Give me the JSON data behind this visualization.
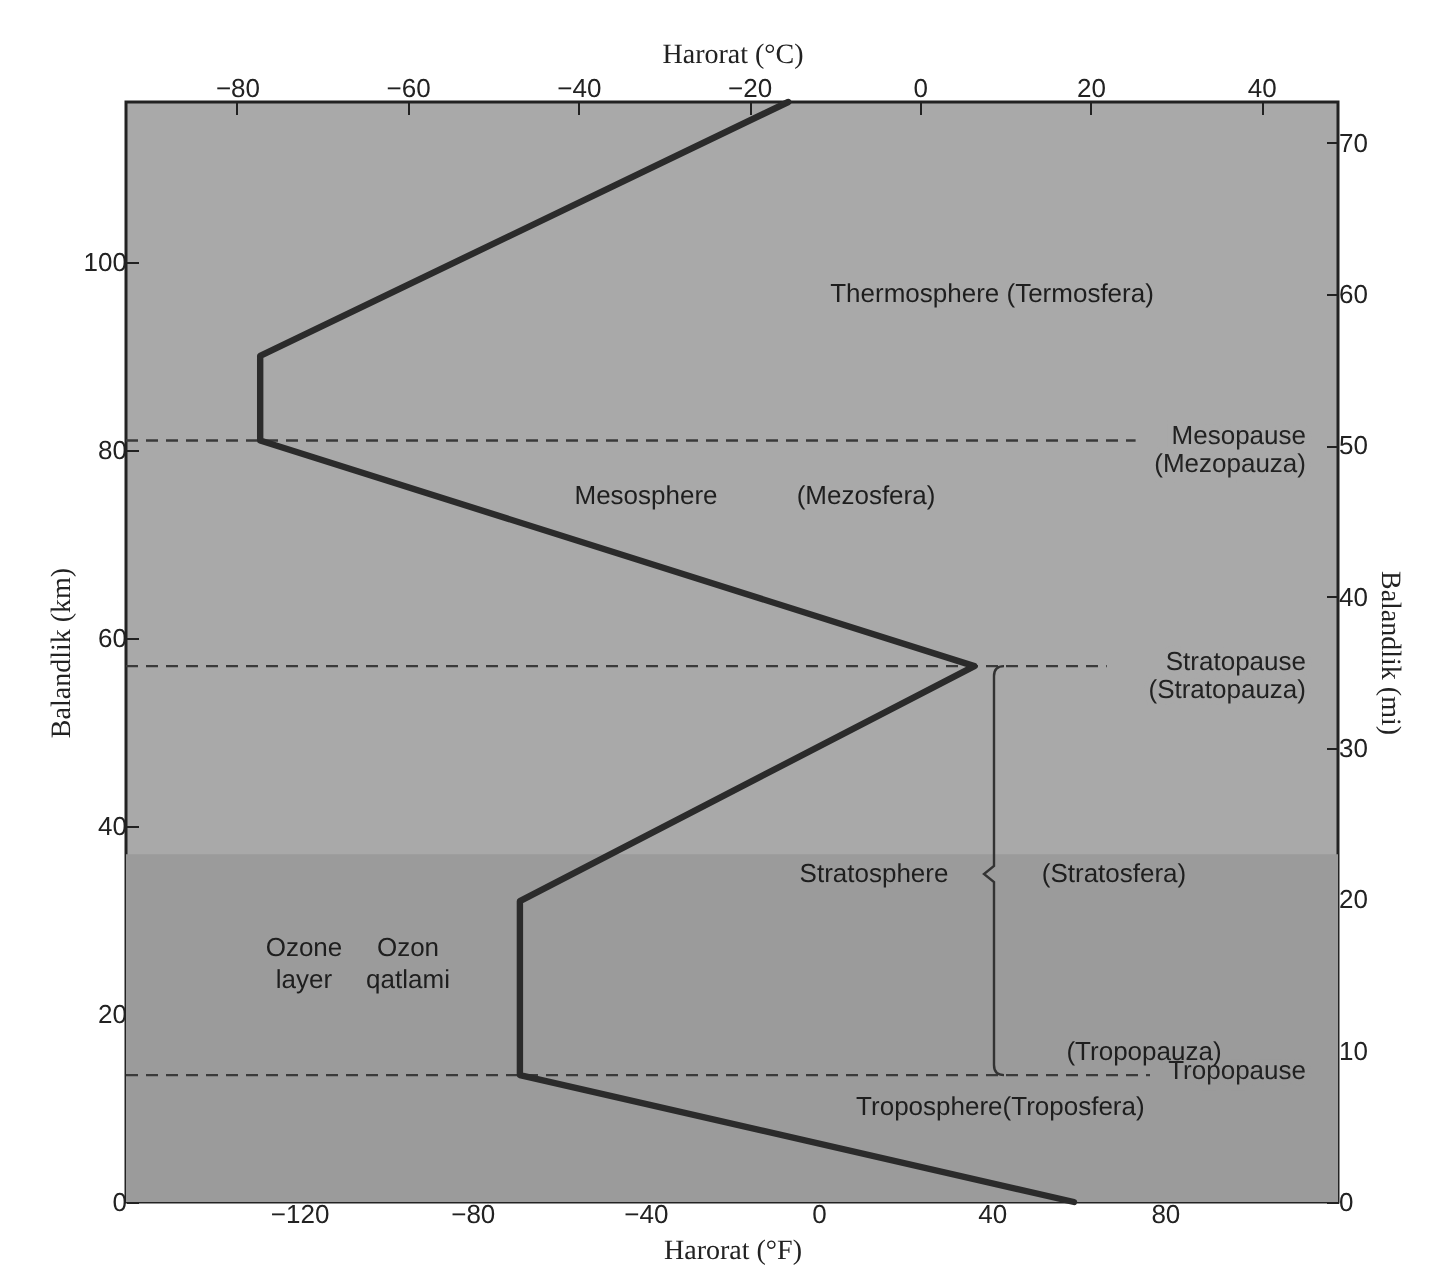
{
  "chart_data": {
    "type": "line",
    "xlabel": "Harorat (°F)",
    "ylabel": "Balandlik (km)",
    "x2label": "Harorat (°C)",
    "y2label": "Balandlik (mi)",
    "xlim": [
      -160,
      120
    ],
    "xticks": [
      -120,
      -80,
      -40,
      0,
      40,
      80
    ],
    "ylim": [
      0,
      117
    ],
    "yticks": [
      0,
      20,
      40,
      60,
      80,
      100
    ],
    "x2lim": [
      -93,
      49
    ],
    "x2ticks": [
      -80,
      -60,
      -40,
      -20,
      0,
      20,
      40
    ],
    "y2lim": [
      0,
      72.7
    ],
    "y2ticks": [
      0,
      10,
      20,
      30,
      40,
      50,
      60,
      70
    ],
    "series": [
      {
        "color": "#2b2b2b",
        "x": [
          59,
          -69,
          -69,
          36,
          -129,
          -129,
          -7
        ],
        "values": [
          0,
          13.5,
          32,
          57,
          81,
          90,
          117
        ]
      }
    ],
    "ref_lines": [
      {
        "axis": "y",
        "value": 81,
        "label": "Mesopause\n(Mezopauza)",
        "line_style": "dashed",
        "color": "#3a3a3a"
      },
      {
        "axis": "y",
        "value": 57,
        "label": "Stratopause\n(Stratopauza)",
        "line_style": "dashed",
        "color": "#3a3a3a"
      },
      {
        "axis": "y",
        "value": 13.5,
        "label": "Tropopause",
        "line_style": "dashed",
        "color": "#3a3a3a"
      }
    ],
    "bands": [
      {
        "axis": "y",
        "from": 0,
        "to": 37,
        "color": "#9b9b9b"
      }
    ],
    "annotations": [
      "Thermosphere (Termosfera)",
      "Mesosphere",
      "(Mezosfera)",
      "Stratosphere",
      "(Stratosfera)",
      "Ozone\nlayer",
      "Ozon\nqatlami",
      "(Tropopauza)",
      {
        "text": "Troposphere(Troposfera)",
        "x": 42,
        "y": 13.5
      }
    ]
  }
}
